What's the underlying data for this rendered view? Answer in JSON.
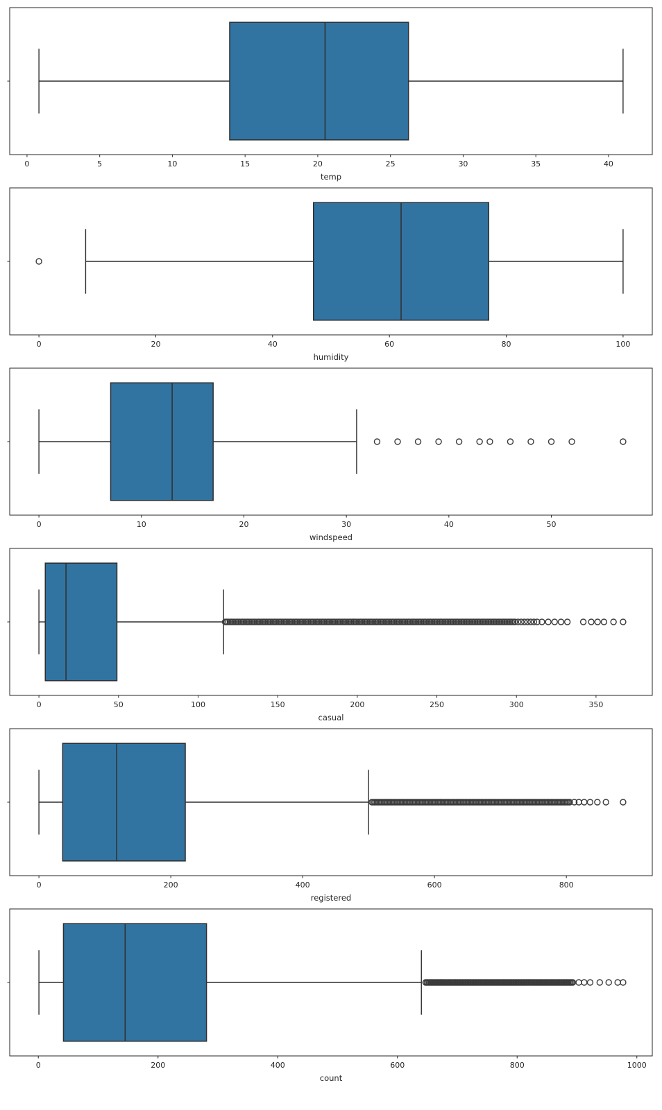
{
  "figure": {
    "background": "#ffffff",
    "box_fill": "#3274a1",
    "box_edge": "#2e2e2e",
    "flier_edge": "#3a3a3a",
    "axis_color": "#262626",
    "tick_label_color": "#262626"
  },
  "chart_data": [
    {
      "type": "boxplot",
      "name": "temp",
      "xlabel": "temp",
      "xlim": [
        -1.19,
        43.01
      ],
      "ticks": [
        0,
        5,
        10,
        15,
        20,
        25,
        30,
        35,
        40
      ],
      "stats": {
        "whisker_low": 0.82,
        "q1": 13.94,
        "median": 20.5,
        "q3": 26.24,
        "whisker_high": 41.0
      },
      "outliers": []
    },
    {
      "type": "boxplot",
      "name": "humidity",
      "xlabel": "humidity",
      "xlim": [
        -5,
        105
      ],
      "ticks": [
        0,
        20,
        40,
        60,
        80,
        100
      ],
      "stats": {
        "whisker_low": 8,
        "q1": 47,
        "median": 62,
        "q3": 77,
        "whisker_high": 100
      },
      "outliers": [
        0
      ]
    },
    {
      "type": "boxplot",
      "name": "windspeed",
      "xlabel": "windspeed",
      "xlim": [
        -2.85,
        59.85
      ],
      "ticks": [
        0,
        10,
        20,
        30,
        40,
        50
      ],
      "stats": {
        "whisker_low": 0,
        "q1": 7.0,
        "median": 13.0,
        "q3": 17.0,
        "whisker_high": 31.0
      },
      "outliers": [
        33.0,
        35.0,
        37.0,
        39.0,
        41.0,
        43.0,
        44.0,
        46.0,
        48.0,
        50.0,
        52.0,
        57.0
      ]
    },
    {
      "type": "boxplot",
      "name": "casual",
      "xlabel": "casual",
      "xlim": [
        -18.35,
        385.35
      ],
      "ticks": [
        0,
        50,
        100,
        150,
        200,
        250,
        300,
        350
      ],
      "stats": {
        "whisker_low": 0,
        "q1": 4,
        "median": 17,
        "q3": 49,
        "whisker_high": 116
      },
      "outliers": [
        [
          117,
          299,
          1
        ],
        [
          301,
          313,
          2
        ],
        316,
        320,
        324,
        328,
        332,
        342,
        347,
        351,
        355,
        361,
        367
      ]
    },
    {
      "type": "boxplot",
      "name": "registered",
      "xlabel": "registered",
      "xlim": [
        -44.3,
        930.3
      ],
      "ticks": [
        0,
        200,
        400,
        600,
        800
      ],
      "stats": {
        "whisker_low": 0,
        "q1": 36,
        "median": 118,
        "q3": 222,
        "whisker_high": 500
      },
      "outliers": [
        [
          505,
          805,
          2
        ],
        812,
        819,
        827,
        836,
        847,
        860,
        886
      ]
    },
    {
      "type": "boxplot",
      "name": "count",
      "xlabel": "count",
      "xlim": [
        -47.8,
        1025.8
      ],
      "ticks": [
        0,
        200,
        400,
        600,
        800,
        1000
      ],
      "stats": {
        "whisker_low": 1,
        "q1": 42,
        "median": 145,
        "q3": 281,
        "whisker_high": 640
      },
      "outliers": [
        [
          647,
          893,
          2
        ],
        903,
        912,
        922,
        938,
        953,
        968,
        977
      ]
    }
  ]
}
